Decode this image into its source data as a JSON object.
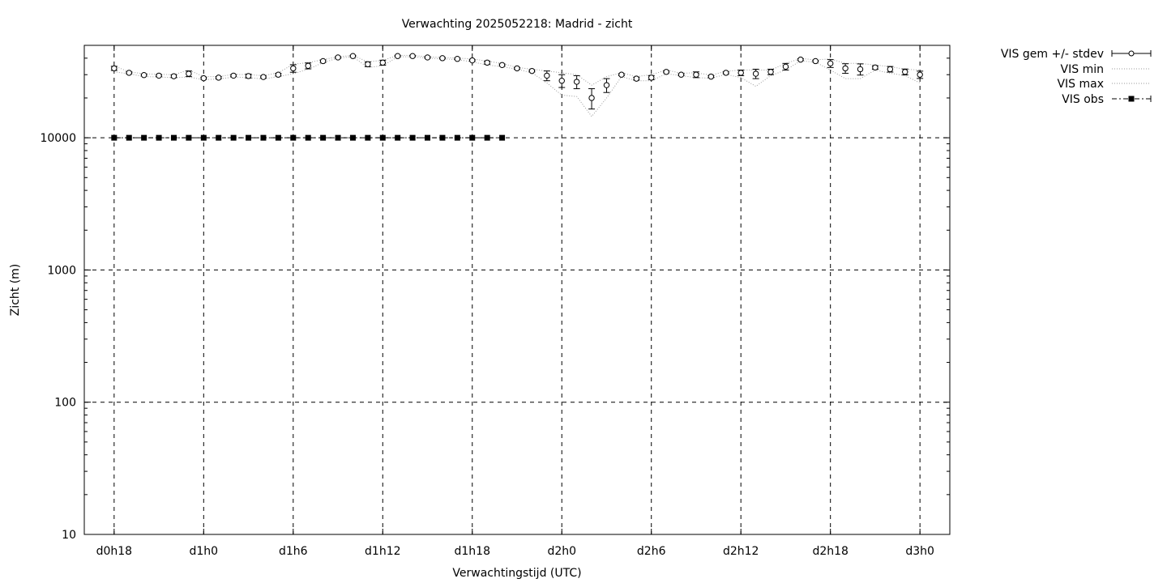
{
  "chart_data": {
    "type": "line",
    "title": "Verwachting 2025052218: Madrid - zicht",
    "xlabel": "Verwachtingstijd (UTC)",
    "ylabel": "Zicht (m)",
    "yscale": "log",
    "ylim": [
      10,
      50000
    ],
    "xlim": [
      -2,
      56
    ],
    "x_unit": "hours since d0h18",
    "grid": true,
    "legend_position": "outside-top-right",
    "x_ticks": [
      {
        "x": 0,
        "label": "d0h18"
      },
      {
        "x": 6,
        "label": "d1h0"
      },
      {
        "x": 12,
        "label": "d1h6"
      },
      {
        "x": 18,
        "label": "d1h12"
      },
      {
        "x": 24,
        "label": "d1h18"
      },
      {
        "x": 30,
        "label": "d2h0"
      },
      {
        "x": 36,
        "label": "d2h6"
      },
      {
        "x": 42,
        "label": "d2h12"
      },
      {
        "x": 48,
        "label": "d2h18"
      },
      {
        "x": 54,
        "label": "d3h0"
      }
    ],
    "y_ticks": [
      {
        "y": 10,
        "label": "10"
      },
      {
        "y": 100,
        "label": "100"
      },
      {
        "y": 1000,
        "label": "1000"
      },
      {
        "y": 10000,
        "label": "10000"
      }
    ],
    "series": [
      {
        "name": "VIS gem +/- stdev",
        "style": "errorbar-open-circle",
        "x": [
          0,
          1,
          2,
          3,
          4,
          5,
          6,
          7,
          8,
          9,
          10,
          11,
          12,
          13,
          14,
          15,
          16,
          17,
          18,
          19,
          20,
          21,
          22,
          23,
          24,
          25,
          26,
          27,
          28,
          29,
          30,
          31,
          32,
          33,
          34,
          35,
          36,
          37,
          38,
          39,
          40,
          41,
          42,
          43,
          44,
          45,
          46,
          47,
          48,
          49,
          50,
          51,
          52,
          53,
          54
        ],
        "mean": [
          33500,
          31000,
          29800,
          29500,
          29200,
          30500,
          28200,
          28500,
          29500,
          29300,
          28800,
          30000,
          33500,
          35000,
          38000,
          40500,
          41500,
          36000,
          37000,
          41500,
          41500,
          40500,
          40000,
          39500,
          38500,
          37000,
          35500,
          33500,
          32000,
          29500,
          27000,
          26500,
          20000,
          25000,
          30000,
          28000,
          28500,
          31500,
          30000,
          30000,
          29000,
          31000,
          31000,
          30500,
          31500,
          34500,
          39000,
          38000,
          36500,
          33500,
          33000,
          34000,
          33000,
          31500,
          30000
        ],
        "stdev": [
          1200,
          500,
          500,
          500,
          700,
          1500,
          500,
          500,
          500,
          1000,
          500,
          700,
          2200,
          1800,
          800,
          500,
          500,
          1500,
          1600,
          500,
          500,
          500,
          500,
          500,
          500,
          1000,
          600,
          500,
          500,
          2500,
          3000,
          3000,
          3500,
          3000,
          500,
          700,
          1000,
          500,
          500,
          1500,
          500,
          500,
          1500,
          2500,
          1500,
          2000,
          600,
          500,
          2500,
          2800,
          3200,
          1000,
          1600,
          1600,
          1900
        ]
      },
      {
        "name": "VIS min",
        "style": "dotted",
        "x": [
          0,
          1,
          2,
          3,
          4,
          5,
          6,
          7,
          8,
          9,
          10,
          11,
          12,
          13,
          14,
          15,
          16,
          17,
          18,
          19,
          20,
          21,
          22,
          23,
          24,
          25,
          26,
          27,
          28,
          29,
          30,
          31,
          32,
          33,
          34,
          35,
          36,
          37,
          38,
          39,
          40,
          41,
          42,
          43,
          44,
          45,
          46,
          47,
          48,
          49,
          50,
          51,
          52,
          53,
          54
        ],
        "values": [
          31500,
          30500,
          29000,
          28800,
          28500,
          28800,
          27500,
          27800,
          28800,
          28500,
          27800,
          29000,
          30500,
          33000,
          37000,
          40000,
          41000,
          34000,
          35000,
          41000,
          41000,
          40000,
          39500,
          39000,
          37500,
          35500,
          34500,
          33000,
          31000,
          26000,
          21000,
          20500,
          14500,
          20000,
          29000,
          27000,
          27000,
          30500,
          29500,
          28500,
          28200,
          30200,
          28500,
          24500,
          29500,
          32500,
          38200,
          37300,
          32500,
          28000,
          28000,
          32500,
          30800,
          29500,
          26000
        ]
      },
      {
        "name": "VIS max",
        "style": "dotted",
        "x": [
          0,
          1,
          2,
          3,
          4,
          5,
          6,
          7,
          8,
          9,
          10,
          11,
          12,
          13,
          14,
          15,
          16,
          17,
          18,
          19,
          20,
          21,
          22,
          23,
          24,
          25,
          26,
          27,
          28,
          29,
          30,
          31,
          32,
          33,
          34,
          35,
          36,
          37,
          38,
          39,
          40,
          41,
          42,
          43,
          44,
          45,
          46,
          47,
          48,
          49,
          50,
          51,
          52,
          53,
          54
        ],
        "values": [
          35000,
          31500,
          30500,
          30200,
          30000,
          32500,
          29000,
          29000,
          30200,
          30000,
          29500,
          31000,
          36000,
          37000,
          39000,
          41000,
          42000,
          37500,
          38500,
          42000,
          42000,
          41000,
          40500,
          40000,
          39500,
          38000,
          36500,
          34000,
          33000,
          32000,
          31000,
          30000,
          25000,
          29000,
          31000,
          29000,
          30000,
          32500,
          30800,
          31000,
          29800,
          31800,
          32500,
          32500,
          32500,
          36500,
          39800,
          38800,
          39500,
          36500,
          36500,
          35500,
          34500,
          33000,
          32500
        ]
      },
      {
        "name": "VIS obs",
        "style": "dash-dot-filled-square",
        "x": [
          0,
          1,
          2,
          3,
          4,
          5,
          6,
          7,
          8,
          9,
          10,
          11,
          12,
          13,
          14,
          15,
          16,
          17,
          18,
          19,
          20,
          21,
          22,
          23,
          24,
          25,
          26
        ],
        "values": [
          10000,
          10000,
          10000,
          10000,
          10000,
          10000,
          10000,
          10000,
          10000,
          10000,
          10000,
          10000,
          10000,
          10000,
          10000,
          10000,
          10000,
          10000,
          10000,
          10000,
          10000,
          10000,
          10000,
          10000,
          10000,
          10000,
          10000
        ]
      }
    ]
  }
}
